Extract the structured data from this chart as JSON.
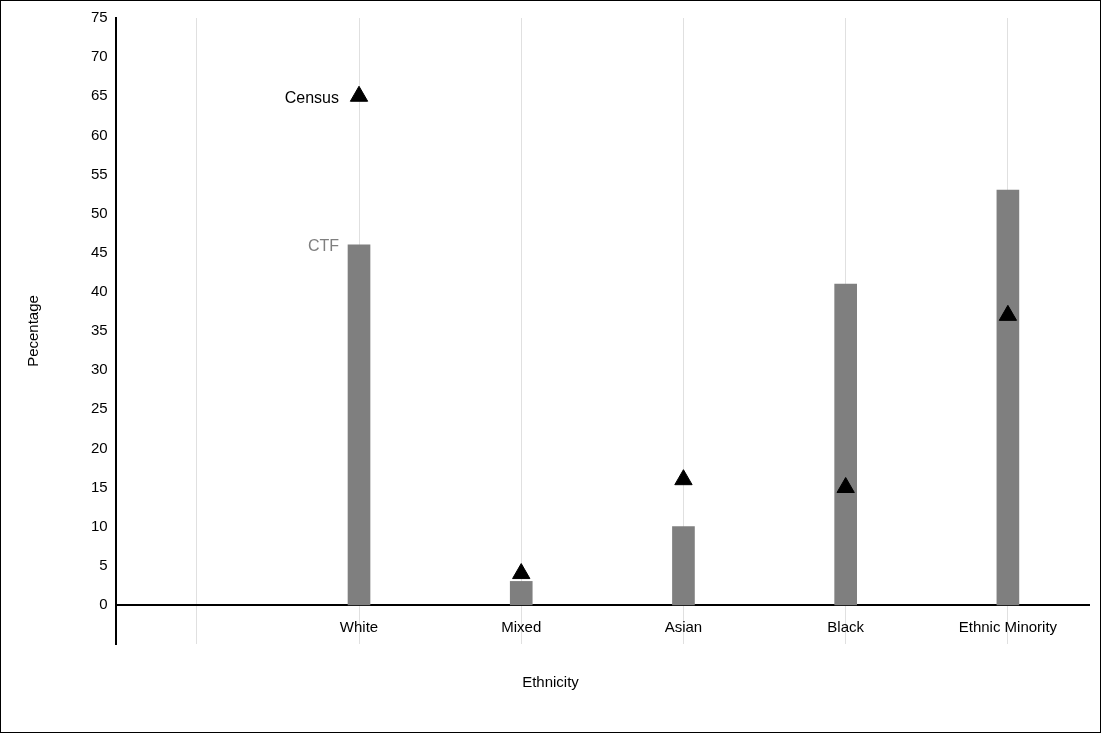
{
  "chart_data": {
    "type": "bar",
    "xlabel": "Ethnicity",
    "ylabel": "Pecentage",
    "categories": [
      null,
      "White",
      "Mixed",
      "Asian",
      "Black",
      "Ethnic Minority"
    ],
    "series": [
      {
        "name": "CTF",
        "color": "#7f7f7f",
        "values": [
          null,
          46,
          3,
          10,
          41,
          53
        ]
      },
      {
        "name": "Census",
        "type": "scatter",
        "color": "#000000",
        "marker": "triangle",
        "values": [
          null,
          65,
          4,
          16,
          15,
          37
        ]
      }
    ],
    "ylim": [
      -5,
      75
    ],
    "yticks": [
      0,
      5,
      10,
      15,
      20,
      25,
      30,
      35,
      40,
      45,
      50,
      55,
      60,
      65,
      70,
      75
    ],
    "grid": "x",
    "legend": false
  }
}
